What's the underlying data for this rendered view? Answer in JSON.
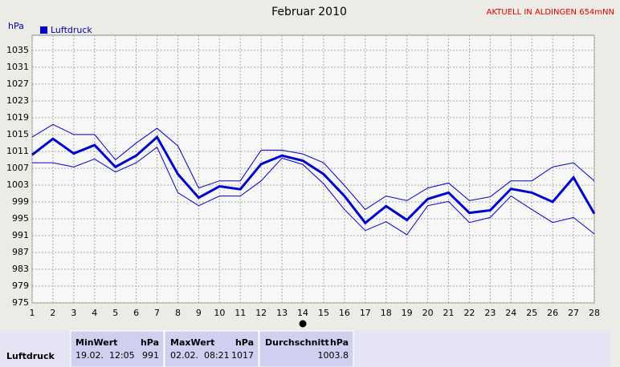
{
  "chart_data": {
    "type": "line",
    "title": "Februar 2010",
    "annotation": "AKTUELL IN ALDINGEN 654mNN",
    "y_label": "hPa",
    "x": [
      1,
      2,
      3,
      4,
      5,
      6,
      7,
      8,
      9,
      10,
      11,
      12,
      13,
      14,
      15,
      16,
      17,
      18,
      19,
      20,
      21,
      22,
      23,
      24,
      25,
      26,
      27,
      28
    ],
    "xlim": [
      1,
      28
    ],
    "xticks": [
      1,
      2,
      3,
      4,
      5,
      6,
      7,
      8,
      9,
      10,
      11,
      12,
      13,
      14,
      15,
      16,
      17,
      18,
      19,
      20,
      21,
      22,
      23,
      24,
      25,
      26,
      27,
      28
    ],
    "ylim": [
      975,
      1038.6
    ],
    "yticks": [
      975,
      979,
      983,
      987,
      991,
      995,
      999,
      1003,
      1007,
      1011,
      1015,
      1019,
      1023,
      1027,
      1031,
      1035
    ],
    "grid": true,
    "highlight_x": 14,
    "series": [
      {
        "name": "Luftdruck",
        "color": "#0000cc",
        "values": [
          1010.2,
          1014,
          1010.5,
          1012.5,
          1007.3,
          1010,
          1014.4,
          1005.6,
          1000,
          1002.7,
          1002,
          1008,
          1010,
          1008.8,
          1005.6,
          1000.4,
          994,
          998,
          994.7,
          999.7,
          1001.2,
          996.4,
          997,
          1002.1,
          1001.2,
          999,
          1004.8,
          996.2
        ]
      },
      {
        "color": "#0000cc",
        "values": [
          1014.4,
          1017.4,
          1015,
          1015,
          1009,
          1013,
          1016.5,
          1012.3,
          1002.3,
          1004,
          1004,
          1011.3,
          1011.3,
          1010.4,
          1008.3,
          1002.9,
          997.2,
          1000.4,
          999.3,
          1002.3,
          1003.5,
          999.3,
          1000.2,
          1004,
          1004,
          1007.3,
          1008.3,
          1004
        ]
      },
      {
        "color": "#0000cc",
        "values": [
          1008.3,
          1008.3,
          1007.3,
          1009.2,
          1006.1,
          1008.3,
          1012,
          1001.2,
          998.1,
          1000.4,
          1000.4,
          1004,
          1009.4,
          1007.9,
          1003.3,
          997.2,
          992.2,
          994.3,
          991.2,
          998.1,
          999.1,
          994.1,
          995.3,
          1000.4,
          997.2,
          994.1,
          995.3,
          991.4
        ]
      }
    ]
  },
  "table": {
    "header": [
      "MinWert",
      "hPa",
      "MaxWert",
      "hPa",
      "Durchschnitt",
      "hPa"
    ],
    "rows": [
      [
        "Luftdruck",
        "19.02.  12:05",
        "991",
        "02.02.  08:21",
        "1017",
        "1003.8"
      ]
    ]
  }
}
